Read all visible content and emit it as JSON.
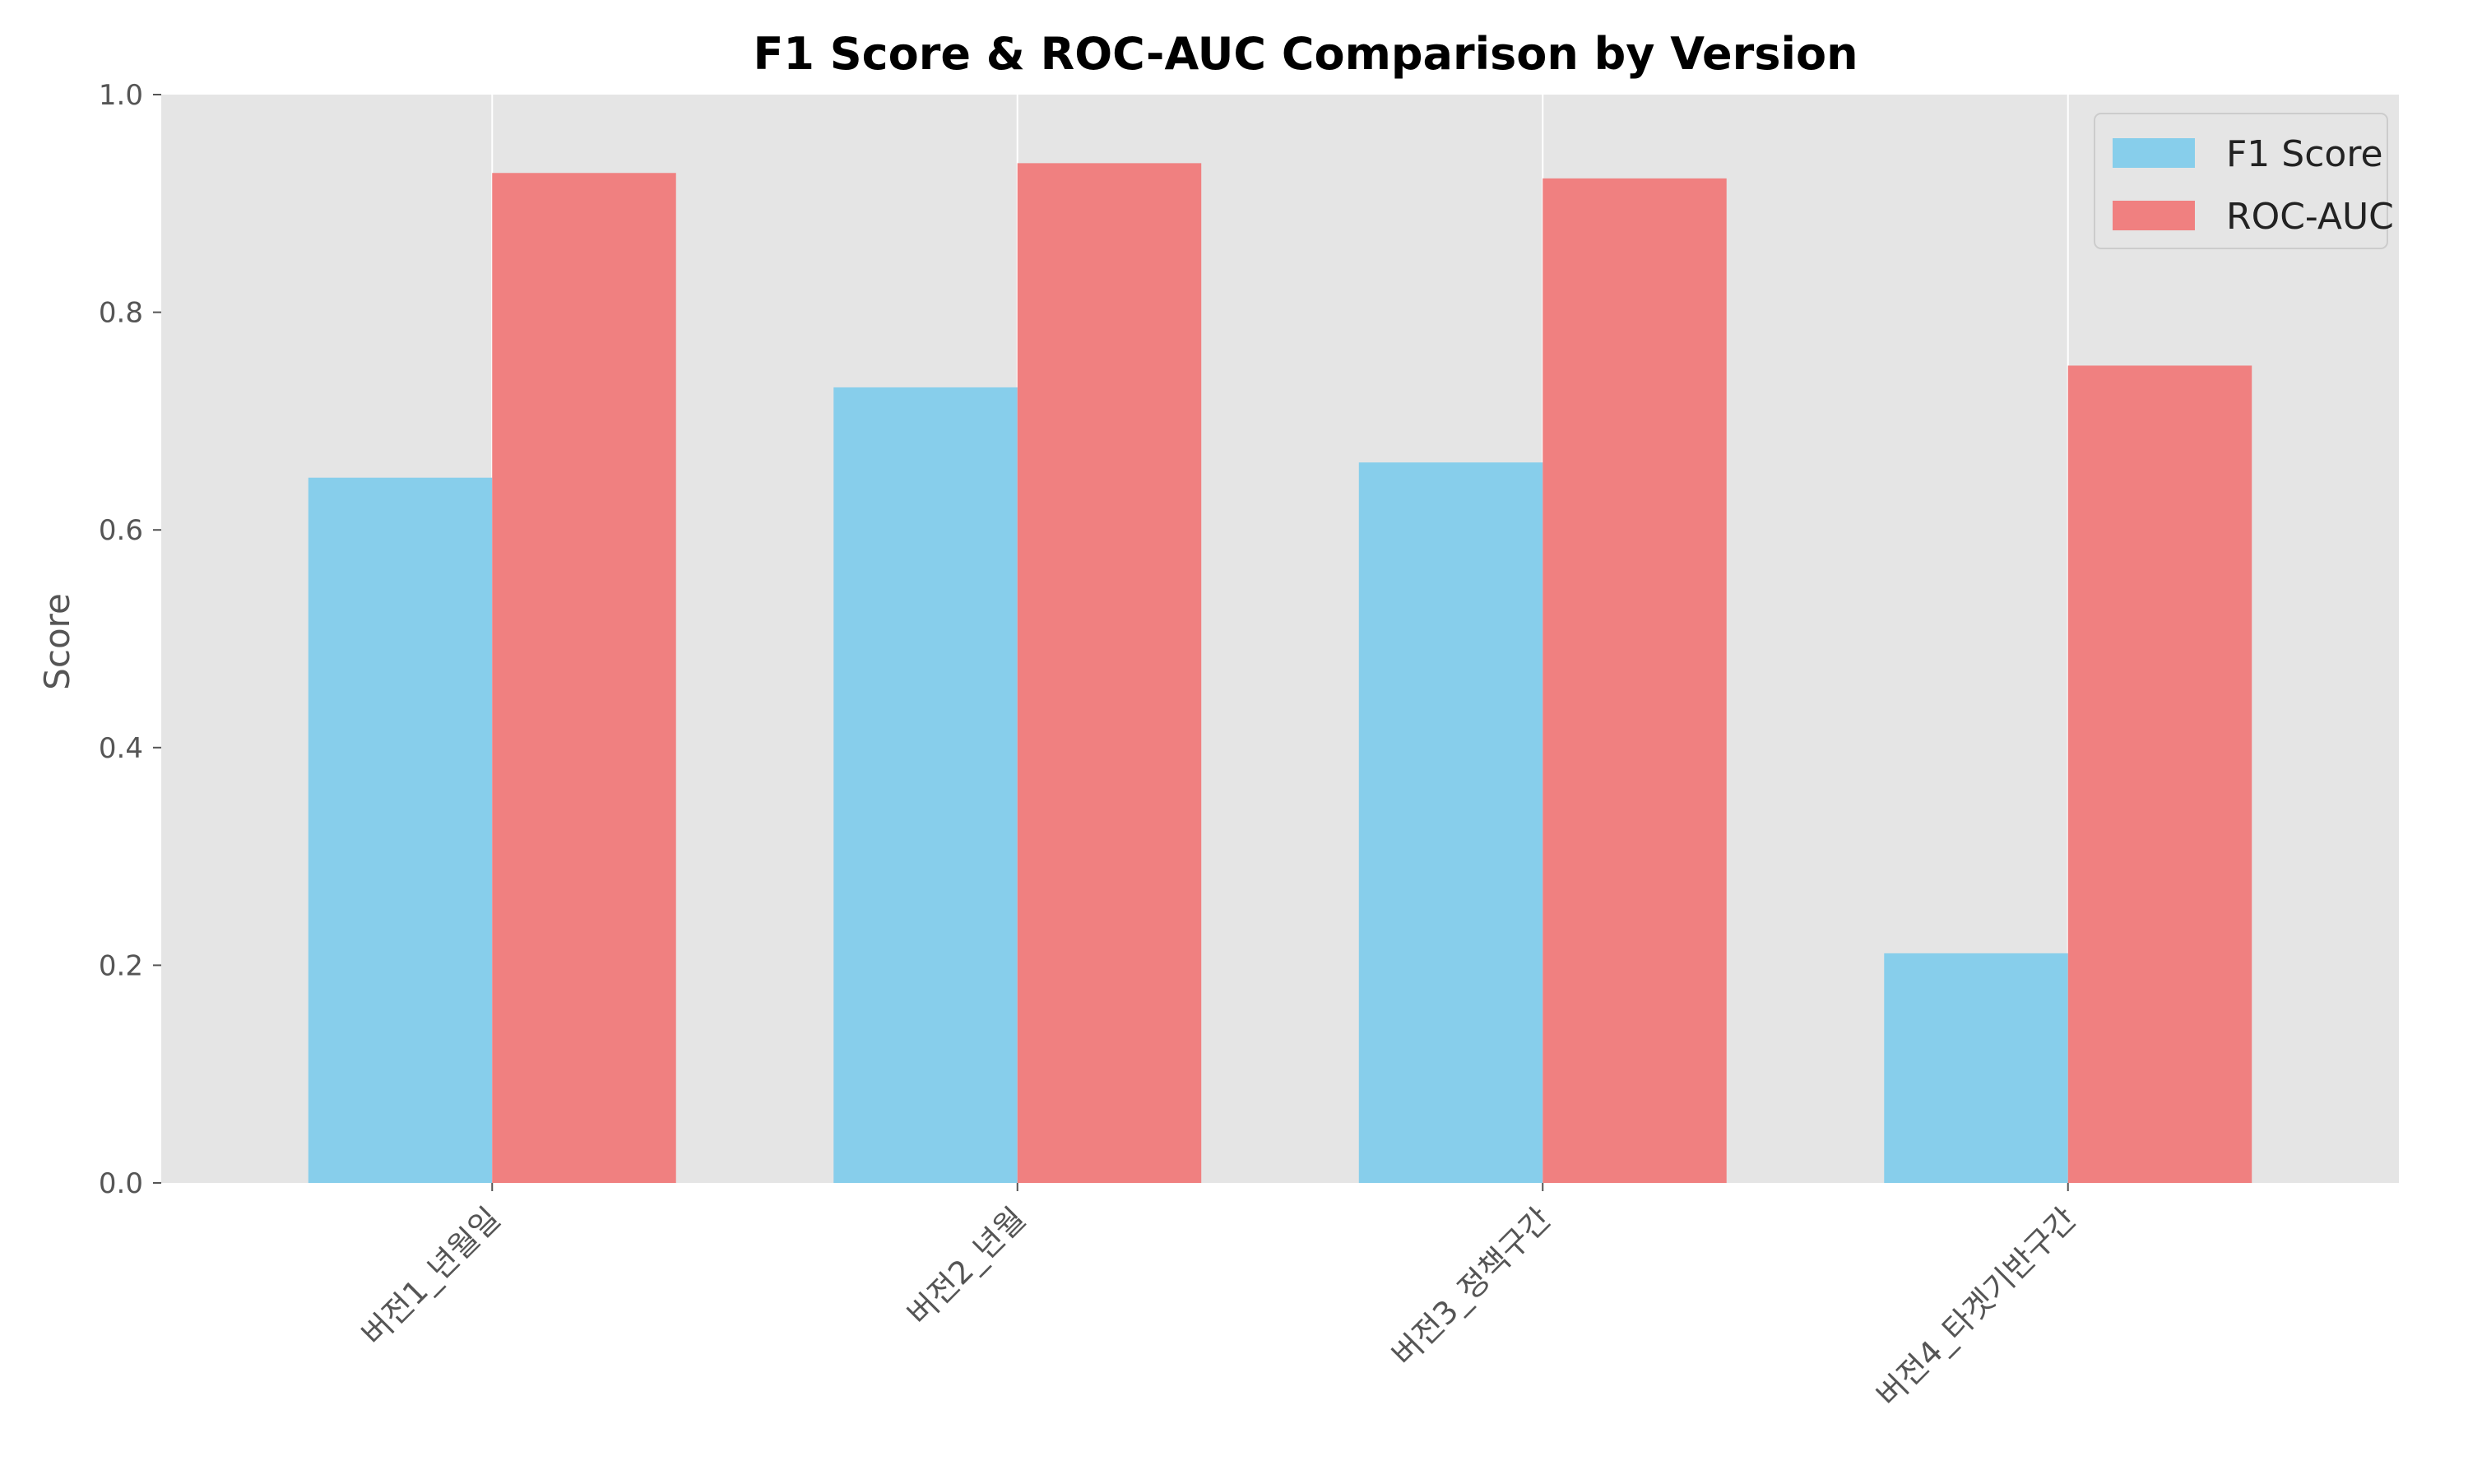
{
  "chart_data": {
    "type": "bar",
    "title": "F1 Score & ROC-AUC Comparison by Version",
    "xlabel": "",
    "ylabel": "Score",
    "ylim": [
      0,
      1.0
    ],
    "yticks": [
      "0.0",
      "0.2",
      "0.4",
      "0.6",
      "0.8",
      "1.0"
    ],
    "categories": [
      "버전1_년월일",
      "버전2_년월",
      "버전3_정책구간",
      "버전4_타겟기반구간"
    ],
    "series": [
      {
        "name": "F1 Score",
        "color": "#87ceeb",
        "values": [
          0.648,
          0.731,
          0.662,
          0.211
        ]
      },
      {
        "name": "ROC-AUC",
        "color": "#f08080",
        "values": [
          0.928,
          0.937,
          0.923,
          0.751
        ]
      }
    ],
    "grid": "vertical",
    "legend": "top-right",
    "background": "#e5e5e5"
  }
}
